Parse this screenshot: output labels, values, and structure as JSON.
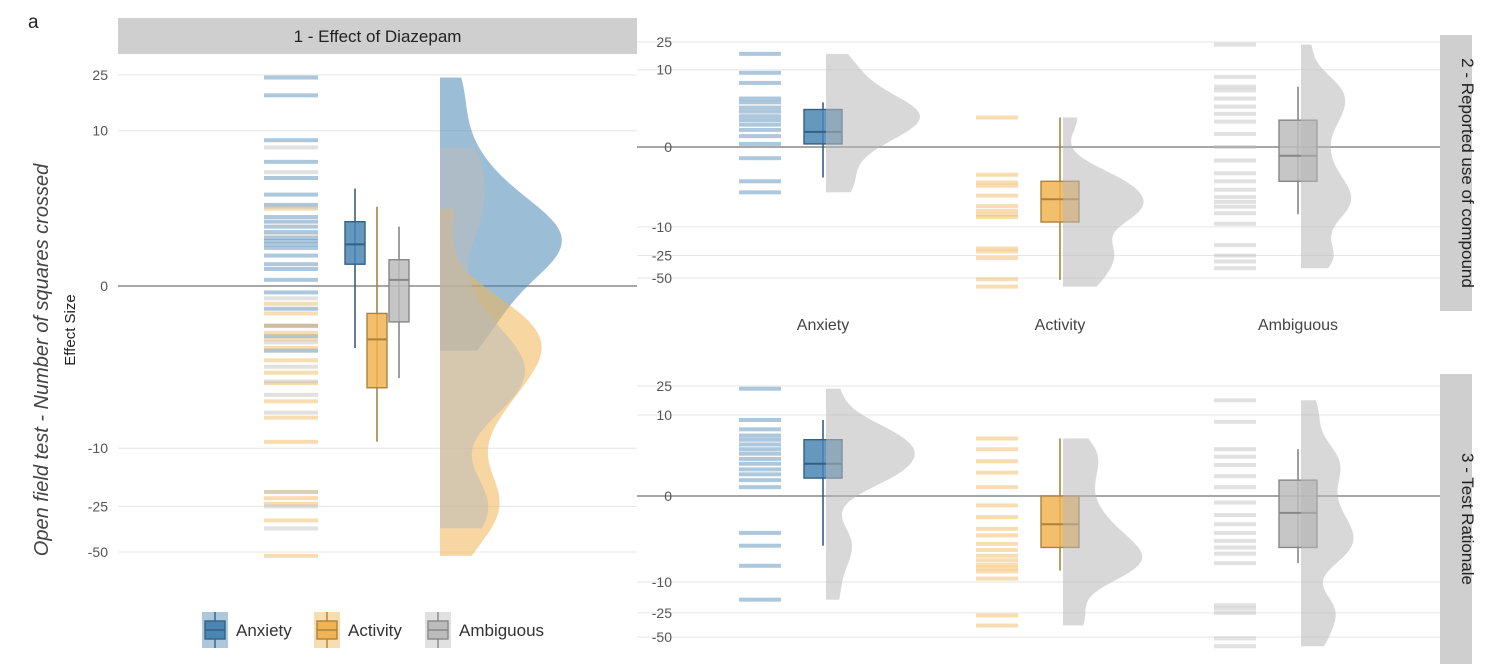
{
  "chart_data": {
    "type": "raincloud",
    "figure_label": "a",
    "y_title_italic": "Open field test - Number of squares crossed",
    "y_title_left": "Effect Size",
    "colors": {
      "Anxiety": "#4a86b4",
      "Activity": "#f0b454",
      "Ambiguous": "#bcbcbc"
    },
    "legend": {
      "position": "bottom",
      "entries": [
        "Anxiety",
        "Activity",
        "Ambiguous"
      ]
    },
    "panels": [
      {
        "id": "p1",
        "strip": "1 - Effect of Diazepam",
        "ticks": [
          "25",
          "10",
          "0",
          "-10",
          "-25",
          "-50"
        ],
        "series": [
          {
            "name": "Anxiety",
            "box": {
              "whisker_low": -1.5,
              "q1": 0.4,
              "median": 0.9,
              "q3": 1.7,
              "whisker_high": 3.5
            },
            "points": [
              24,
              18,
              8.5,
              5.8,
              4.3,
              3.1,
              2.5,
              1.9,
              1.7,
              1.5,
              1.3,
              1.1,
              1.0,
              0.9,
              0.8,
              0.6,
              0.4,
              0.3,
              0.1,
              -0.1,
              -0.4,
              -0.8,
              -1.1,
              -1.6
            ]
          },
          {
            "name": "Activity",
            "box": {
              "whisker_low": -9,
              "q1": -3.5,
              "median": -1.2,
              "q3": -0.5,
              "whisker_high": 2.4
            },
            "points": [
              2.3,
              -0.3,
              -0.5,
              -0.8,
              -1.0,
              -1.2,
              -1.5,
              -2.0,
              -2.6,
              -3.2,
              -4.5,
              -6.0,
              -9,
              -20,
              -22,
              -24,
              -31,
              -53
            ]
          },
          {
            "name": "Ambiguous",
            "box": {
              "whisker_low": -2.9,
              "q1": -0.7,
              "median": 0.1,
              "q3": 0.5,
              "whisker_high": 1.5
            },
            "points": [
              7.5,
              4.8,
              2.4,
              1.2,
              -0.2,
              -1.3,
              -1.6,
              -2.3,
              -3.1,
              -4.0,
              -5.5,
              -20,
              -25,
              -35
            ]
          }
        ]
      },
      {
        "id": "p2",
        "strip": "2 - Reported use of compound",
        "ticks": [
          "25",
          "10",
          "0",
          "-10",
          "-25",
          "-50"
        ],
        "categories": [
          "Anxiety",
          "Activity",
          "Ambiguous"
        ],
        "series": [
          {
            "name": "Anxiety",
            "box": {
              "whisker_low": -1.5,
              "q1": 0.1,
              "median": 0.6,
              "q3": 2.2,
              "whisker_high": 3.0
            },
            "points": [
              17,
              9.0,
              6.3,
              3.5,
              3.0,
              2.4,
              2.0,
              1.6,
              1.3,
              1.0,
              0.7,
              0.4,
              0.1,
              -0.4,
              -1.8,
              -2.9
            ]
          },
          {
            "name": "Activity",
            "box": {
              "whisker_low": -53,
              "q1": -8.5,
              "median": -3.8,
              "q3": -1.8,
              "whisker_high": 1.5
            },
            "points": [
              1.5,
              -1.3,
              -1.9,
              -2.2,
              -3.3,
              -4.9,
              -5.8,
              -6.6,
              -7.2,
              -20,
              -22,
              -27,
              -52,
              -65
            ]
          },
          {
            "name": "Ambiguous",
            "box": {
              "whisker_low": -6.5,
              "q1": -1.8,
              "median": -0.3,
              "q3": 1.3,
              "whisker_high": 5.5
            },
            "points": [
              23,
              7.8,
              5.5,
              4.8,
              3.5,
              2.5,
              1.8,
              1.2,
              0.5,
              0.0,
              -0.5,
              -1.2,
              -1.8,
              -2.6,
              -3.5,
              -4.2,
              -5.0,
              -6.3,
              -9,
              -18,
              -25,
              -30,
              -37
            ]
          }
        ]
      },
      {
        "id": "p3",
        "strip": "3 - Test Rationale",
        "ticks": [
          "25",
          "10",
          "0",
          "-10",
          "-25",
          "-50"
        ],
        "series": [
          {
            "name": "Anxiety",
            "box": {
              "whisker_low": -3,
              "q1": 0.7,
              "median": 1.6,
              "q3": 4.3,
              "whisker_high": 8.5
            },
            "points": [
              23,
              8.5,
              6.2,
              5.0,
              4.3,
              3.6,
              3.0,
              2.5,
              2.0,
              1.6,
              1.2,
              0.9,
              0.6,
              0.3,
              -1.8,
              -3,
              -6,
              -17
            ]
          },
          {
            "name": "Activity",
            "box": {
              "whisker_low": -7,
              "q1": -3.2,
              "median": -1.2,
              "q3": 0.0,
              "whisker_high": 4.5
            },
            "points": [
              4.5,
              3.0,
              1.8,
              1.0,
              0.3,
              -0.3,
              -0.8,
              -1.5,
              -2.0,
              -2.8,
              -3.5,
              -4.3,
              -5.0,
              -5.8,
              -6.5,
              -7.2,
              -9,
              -27,
              -36
            ]
          },
          {
            "name": "Ambiguous",
            "box": {
              "whisker_low": -5.5,
              "q1": -3.2,
              "median": -0.6,
              "q3": 0.6,
              "whisker_high": 3.0
            },
            "points": [
              16,
              8,
              3.0,
              2.2,
              1.5,
              0.8,
              0.3,
              -0.2,
              -0.7,
              -1.2,
              -1.8,
              -2.5,
              -3.2,
              -4.0,
              -5.5,
              -20,
              -22,
              -25,
              -52,
              -65
            ]
          }
        ]
      }
    ]
  }
}
